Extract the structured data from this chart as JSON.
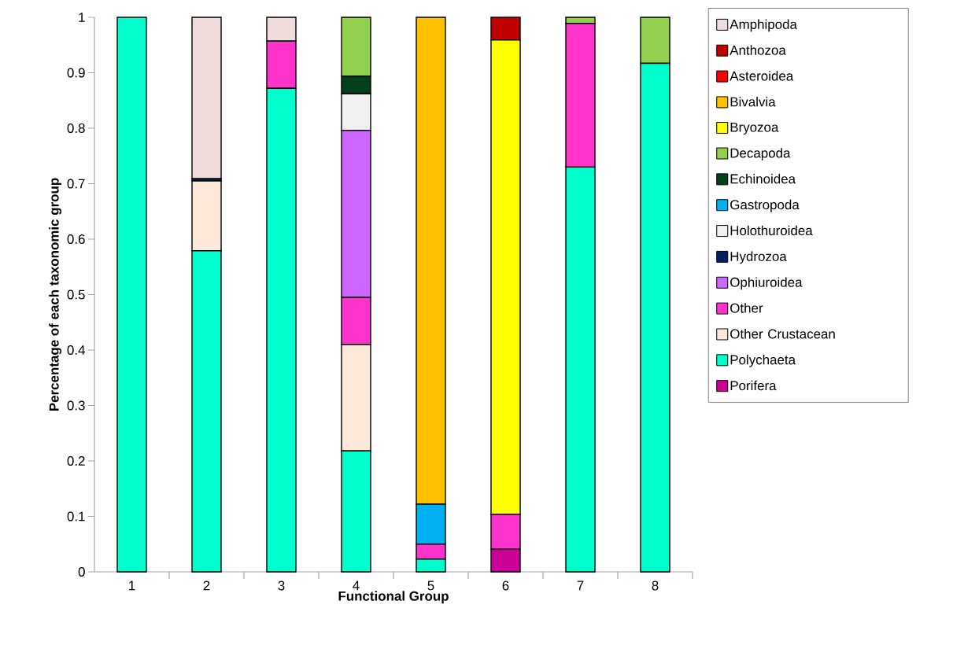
{
  "chart_data": {
    "type": "bar",
    "stacked": true,
    "xlabel": "Functional Group",
    "ylabel": "Percentage of each taxonomic group",
    "categories": [
      "1",
      "2",
      "3",
      "4",
      "5",
      "6",
      "7",
      "8"
    ],
    "ylim": [
      0,
      1
    ],
    "yticks": [
      0,
      0.1,
      0.2,
      0.3,
      0.4,
      0.5,
      0.6,
      0.7,
      0.8,
      0.9,
      1
    ],
    "legend": "right",
    "series": [
      {
        "name": "Porifera",
        "color": "#cc0099",
        "values": [
          0,
          0,
          0,
          0,
          0,
          0.041,
          0,
          0
        ]
      },
      {
        "name": "Polychaeta",
        "color": "#00ffcc",
        "values": [
          1,
          0.579,
          0.872,
          0.218,
          0.023,
          0,
          0.73,
          0.917
        ]
      },
      {
        "name": "Other Crustacean",
        "color": "#fde9d9",
        "values": [
          0,
          0.126,
          0,
          0.192,
          0,
          0,
          0,
          0
        ]
      },
      {
        "name": "Other",
        "color": "#ff33cc",
        "values": [
          0,
          0,
          0.085,
          0.085,
          0.027,
          0.063,
          0.259,
          0
        ]
      },
      {
        "name": "Ophiuroidea",
        "color": "#cc66ff",
        "values": [
          0,
          0,
          0,
          0.301,
          0,
          0,
          0,
          0
        ]
      },
      {
        "name": "Hydrozoa",
        "color": "#002060",
        "values": [
          0,
          0.004,
          0,
          0,
          0,
          0,
          0,
          0
        ]
      },
      {
        "name": "Holothuroidea",
        "color": "#f0f0f0",
        "values": [
          0,
          0,
          0,
          0.066,
          0,
          0,
          0,
          0
        ]
      },
      {
        "name": "Gastropoda",
        "color": "#00b0f0",
        "values": [
          0,
          0,
          0,
          0,
          0.072,
          0,
          0,
          0
        ]
      },
      {
        "name": "Echinoidea",
        "color": "#00401a",
        "values": [
          0,
          0,
          0,
          0.032,
          0,
          0,
          0,
          0
        ]
      },
      {
        "name": "Decapoda",
        "color": "#92d050",
        "values": [
          0,
          0,
          0,
          0.106,
          0,
          0,
          0.011,
          0.083
        ]
      },
      {
        "name": "Bryozoa",
        "color": "#ffff00",
        "values": [
          0,
          0,
          0,
          0,
          0,
          0.855,
          0,
          0
        ]
      },
      {
        "name": "Bivalvia",
        "color": "#ffc000",
        "values": [
          0,
          0,
          0,
          0,
          0.878,
          0,
          0,
          0
        ]
      },
      {
        "name": "Asteroidea",
        "color": "#ff0000",
        "values": [
          0,
          0,
          0,
          0,
          0,
          0,
          0,
          0
        ]
      },
      {
        "name": "Anthozoa",
        "color": "#c00000",
        "values": [
          0,
          0,
          0,
          0,
          0,
          0.041,
          0,
          0
        ]
      },
      {
        "name": "Amphipoda",
        "color": "#f0dcdc",
        "values": [
          0,
          0.291,
          0.043,
          0,
          0,
          0,
          0,
          0
        ]
      }
    ]
  }
}
